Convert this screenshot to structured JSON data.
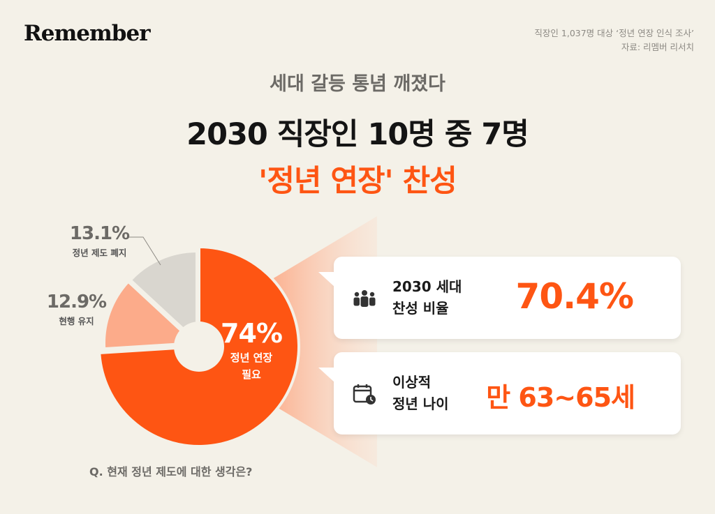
{
  "brand": {
    "logo": "Remember"
  },
  "source": {
    "line1": "직장인 1,037명 대상 ‘정년 연장 인식 조사’",
    "line2": "자료: 리멤버 리서치"
  },
  "header": {
    "subtitle": "세대 갈등 통념 깨졌다",
    "title_line1": "2030 직장인 10명 중 7명",
    "title_line2": "'정년 연장' 찬성"
  },
  "chart_data": {
    "type": "pie",
    "question": "Q. 현재 정년 제도에 대한 생각은?",
    "slices": [
      {
        "label": "정년 연장 필요",
        "value": 74,
        "value_label": "74%",
        "color": "#fe5513"
      },
      {
        "label": "현행 유지",
        "value": 12.9,
        "value_label": "12.9%",
        "color": "#fcab8a"
      },
      {
        "label": "정년 제도 폐지",
        "value": 13.1,
        "value_label": "13.1%",
        "color": "#d9d6cf"
      }
    ],
    "inner_label_line1": "정년 연장",
    "inner_label_line2": "필요"
  },
  "cards": [
    {
      "icon": "people-icon",
      "label_line1": "2030 세대",
      "label_line2": "찬성 비율",
      "value": "70.4%"
    },
    {
      "icon": "calendar-clock-icon",
      "label_line1": "이상적",
      "label_line2": "정년 나이",
      "value": "만 63~65세"
    }
  ],
  "colors": {
    "accent": "#fe5513",
    "background": "#f4f1e8"
  }
}
